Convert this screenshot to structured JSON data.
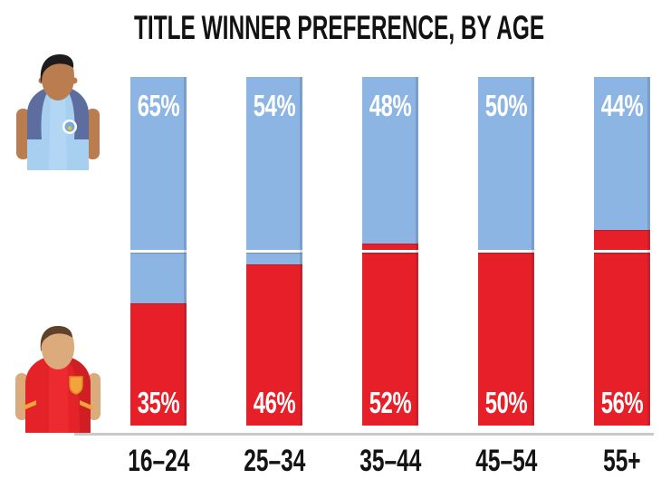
{
  "title": "TITLE WINNER PREFERENCE, BY AGE",
  "chart_data": {
    "type": "bar",
    "stacked": true,
    "title": "TITLE WINNER PREFERENCE, BY AGE",
    "categories": [
      "16–24",
      "25–34",
      "35–44",
      "45–54",
      "55+"
    ],
    "series": [
      {
        "name": "blue-shirt-team",
        "color": "#8cb5e4",
        "values": [
          65,
          54,
          48,
          50,
          44
        ]
      },
      {
        "name": "red-shirt-team",
        "color": "#e71f28",
        "values": [
          35,
          46,
          52,
          50,
          56
        ]
      }
    ],
    "value_label_format": "{value}%",
    "reference_line_pct": 50,
    "ylim": [
      0,
      100
    ],
    "grid": false,
    "legend_position": "left-avatars",
    "xlabel": "",
    "ylabel": ""
  },
  "legend": {
    "top_avatar": "fan in light blue shirt",
    "bottom_avatar": "fan in red shirt"
  },
  "colors": {
    "blue_segment": "#8cb5e4",
    "red_segment": "#e71f28",
    "reference_line": "#ffffff",
    "baseline": "#c9c9c9",
    "text": "#121212",
    "background": "#ffffff"
  }
}
